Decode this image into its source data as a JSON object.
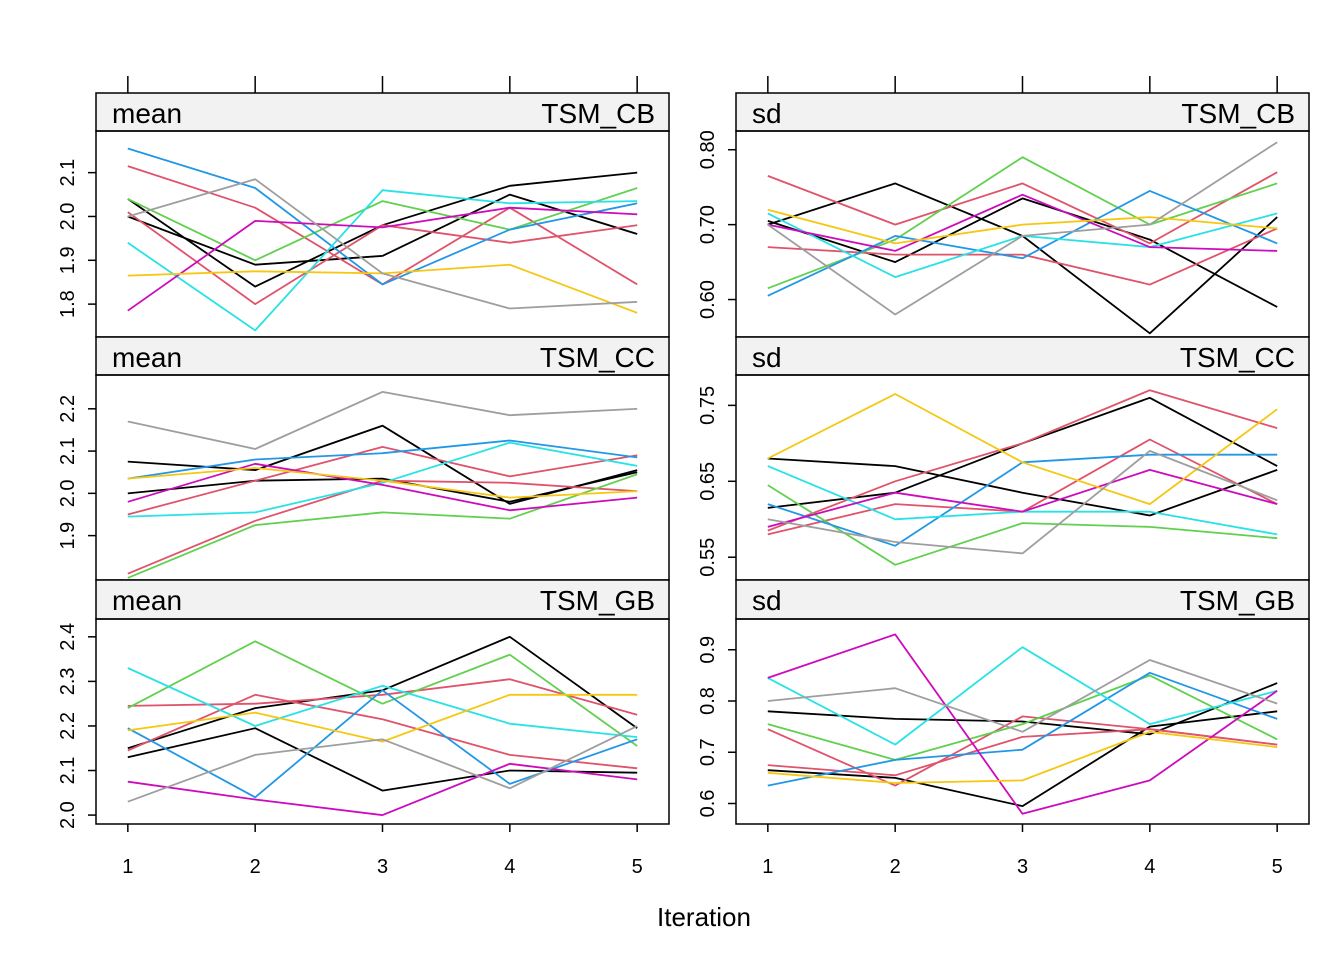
{
  "chart_data": {
    "type": "line",
    "layout": "3 rows x 2 columns lattice (trellis) panels",
    "xlabel": "Iteration",
    "x": [
      1,
      2,
      3,
      4,
      5
    ],
    "colors": [
      "#000000",
      "#DF536B",
      "#61D04F",
      "#2297E6",
      "#28E2E5",
      "#CD0BBC",
      "#F5C710",
      "#9E9E9E"
    ],
    "panels": [
      {
        "stat": "mean",
        "variable": "TSM_CB",
        "ylim": [
          1.725,
          2.195
        ],
        "yticks": [
          1.8,
          1.9,
          2.0,
          2.1
        ],
        "ytick_labels": [
          "1.8",
          "1.9",
          "2.0",
          "2.1"
        ],
        "series": [
          {
            "color": "#000000",
            "values": [
              2.04,
              1.84,
              1.98,
              2.07,
              2.1
            ]
          },
          {
            "color": "#000000",
            "values": [
              2.0,
              1.89,
              1.91,
              2.05,
              1.96
            ]
          },
          {
            "color": "#DF536B",
            "values": [
              2.115,
              2.02,
              1.845,
              2.02,
              1.845
            ]
          },
          {
            "color": "#DF536B",
            "values": [
              2.01,
              1.8,
              1.98,
              1.94,
              1.98
            ]
          },
          {
            "color": "#61D04F",
            "values": [
              2.04,
              1.9,
              2.035,
              1.97,
              2.065
            ]
          },
          {
            "color": "#2297E6",
            "values": [
              2.155,
              2.065,
              1.845,
              1.97,
              2.03
            ]
          },
          {
            "color": "#28E2E5",
            "values": [
              1.94,
              1.74,
              2.06,
              2.03,
              2.035
            ]
          },
          {
            "color": "#CD0BBC",
            "values": [
              1.785,
              1.99,
              1.975,
              2.02,
              2.005
            ]
          },
          {
            "color": "#F5C710",
            "values": [
              1.865,
              1.875,
              1.87,
              1.89,
              1.78
            ]
          },
          {
            "color": "#9E9E9E",
            "values": [
              2.0,
              2.085,
              1.87,
              1.79,
              1.805
            ]
          }
        ]
      },
      {
        "stat": "sd",
        "variable": "TSM_CB",
        "ylim": [
          0.55,
          0.825
        ],
        "yticks": [
          0.6,
          0.7,
          0.8
        ],
        "ytick_labels": [
          "0.60",
          "0.70",
          "0.80"
        ],
        "series": [
          {
            "color": "#000000",
            "values": [
              0.7,
              0.755,
              0.685,
              0.555,
              0.71
            ]
          },
          {
            "color": "#000000",
            "values": [
              0.705,
              0.65,
              0.735,
              0.68,
              0.59
            ]
          },
          {
            "color": "#DF536B",
            "values": [
              0.765,
              0.7,
              0.755,
              0.675,
              0.77
            ]
          },
          {
            "color": "#DF536B",
            "values": [
              0.67,
              0.66,
              0.66,
              0.62,
              0.695
            ]
          },
          {
            "color": "#61D04F",
            "values": [
              0.615,
              0.68,
              0.79,
              0.7,
              0.755
            ]
          },
          {
            "color": "#2297E6",
            "values": [
              0.605,
              0.685,
              0.655,
              0.745,
              0.675
            ]
          },
          {
            "color": "#28E2E5",
            "values": [
              0.715,
              0.63,
              0.685,
              0.67,
              0.715
            ]
          },
          {
            "color": "#CD0BBC",
            "values": [
              0.7,
              0.665,
              0.74,
              0.67,
              0.665
            ]
          },
          {
            "color": "#F5C710",
            "values": [
              0.72,
              0.675,
              0.7,
              0.71,
              0.695
            ]
          },
          {
            "color": "#9E9E9E",
            "values": [
              0.7,
              0.58,
              0.685,
              0.7,
              0.81
            ]
          }
        ]
      },
      {
        "stat": "mean",
        "variable": "TSM_CC",
        "ylim": [
          1.795,
          2.28
        ],
        "yticks": [
          1.9,
          2.0,
          2.1,
          2.2
        ],
        "ytick_labels": [
          "1.9",
          "2.0",
          "2.1",
          "2.2"
        ],
        "series": [
          {
            "color": "#000000",
            "values": [
              2.075,
              2.055,
              2.16,
              1.975,
              2.055
            ]
          },
          {
            "color": "#000000",
            "values": [
              2.0,
              2.03,
              2.035,
              1.98,
              2.05
            ]
          },
          {
            "color": "#DF536B",
            "values": [
              1.95,
              2.03,
              2.11,
              2.04,
              2.09
            ]
          },
          {
            "color": "#DF536B",
            "values": [
              1.81,
              1.935,
              2.03,
              2.025,
              2.005
            ]
          },
          {
            "color": "#61D04F",
            "values": [
              1.8,
              1.925,
              1.955,
              1.94,
              2.045
            ]
          },
          {
            "color": "#2297E6",
            "values": [
              2.035,
              2.08,
              2.095,
              2.125,
              2.085
            ]
          },
          {
            "color": "#28E2E5",
            "values": [
              1.945,
              1.955,
              2.025,
              2.12,
              2.065
            ]
          },
          {
            "color": "#CD0BBC",
            "values": [
              1.98,
              2.07,
              2.02,
              1.96,
              1.99
            ]
          },
          {
            "color": "#F5C710",
            "values": [
              2.035,
              2.06,
              2.03,
              1.99,
              2.005
            ]
          },
          {
            "color": "#9E9E9E",
            "values": [
              2.17,
              2.105,
              2.24,
              2.185,
              2.2
            ]
          }
        ]
      },
      {
        "stat": "sd",
        "variable": "TSM_CC",
        "ylim": [
          0.52,
          0.79
        ],
        "yticks": [
          0.55,
          0.65,
          0.75
        ],
        "ytick_labels": [
          "0.55",
          "0.65",
          "0.75"
        ],
        "series": [
          {
            "color": "#000000",
            "values": [
              0.68,
              0.67,
              0.635,
              0.605,
              0.665
            ]
          },
          {
            "color": "#000000",
            "values": [
              0.615,
              0.635,
              0.7,
              0.76,
              0.67
            ]
          },
          {
            "color": "#DF536B",
            "values": [
              0.585,
              0.65,
              0.7,
              0.77,
              0.72
            ]
          },
          {
            "color": "#DF536B",
            "values": [
              0.58,
              0.62,
              0.61,
              0.705,
              0.62
            ]
          },
          {
            "color": "#61D04F",
            "values": [
              0.645,
              0.54,
              0.595,
              0.59,
              0.575
            ]
          },
          {
            "color": "#2297E6",
            "values": [
              0.62,
              0.565,
              0.675,
              0.685,
              0.685
            ]
          },
          {
            "color": "#28E2E5",
            "values": [
              0.67,
              0.6,
              0.61,
              0.61,
              0.58
            ]
          },
          {
            "color": "#CD0BBC",
            "values": [
              0.59,
              0.635,
              0.61,
              0.665,
              0.62
            ]
          },
          {
            "color": "#F5C710",
            "values": [
              0.68,
              0.765,
              0.675,
              0.62,
              0.745
            ]
          },
          {
            "color": "#9E9E9E",
            "values": [
              0.6,
              0.57,
              0.555,
              0.69,
              0.625
            ]
          }
        ]
      },
      {
        "stat": "mean",
        "variable": "TSM_GB",
        "ylim": [
          1.98,
          2.44
        ],
        "yticks": [
          2.0,
          2.1,
          2.2,
          2.3,
          2.4
        ],
        "ytick_labels": [
          "2.0",
          "2.1",
          "2.2",
          "2.3",
          "2.4"
        ],
        "series": [
          {
            "color": "#000000",
            "values": [
              2.13,
              2.195,
              2.055,
              2.1,
              2.095
            ]
          },
          {
            "color": "#000000",
            "values": [
              2.15,
              2.24,
              2.28,
              2.4,
              2.195
            ]
          },
          {
            "color": "#DF536B",
            "values": [
              2.145,
              2.27,
              2.215,
              2.135,
              2.105
            ]
          },
          {
            "color": "#DF536B",
            "values": [
              2.245,
              2.25,
              2.27,
              2.305,
              2.225
            ]
          },
          {
            "color": "#61D04F",
            "values": [
              2.24,
              2.39,
              2.25,
              2.36,
              2.155
            ]
          },
          {
            "color": "#2297E6",
            "values": [
              2.195,
              2.04,
              2.28,
              2.07,
              2.17
            ]
          },
          {
            "color": "#28E2E5",
            "values": [
              2.33,
              2.2,
              2.29,
              2.205,
              2.175
            ]
          },
          {
            "color": "#CD0BBC",
            "values": [
              2.075,
              2.035,
              2.0,
              2.115,
              2.08
            ]
          },
          {
            "color": "#F5C710",
            "values": [
              2.19,
              2.23,
              2.165,
              2.27,
              2.27
            ]
          },
          {
            "color": "#9E9E9E",
            "values": [
              2.03,
              2.135,
              2.17,
              2.06,
              2.2
            ]
          }
        ]
      },
      {
        "stat": "sd",
        "variable": "TSM_GB",
        "ylim": [
          0.56,
          0.96
        ],
        "yticks": [
          0.6,
          0.7,
          0.8,
          0.9
        ],
        "ytick_labels": [
          "0.6",
          "0.7",
          "0.8",
          "0.9"
        ],
        "series": [
          {
            "color": "#000000",
            "values": [
              0.78,
              0.765,
              0.76,
              0.735,
              0.835
            ]
          },
          {
            "color": "#000000",
            "values": [
              0.665,
              0.65,
              0.595,
              0.75,
              0.78
            ]
          },
          {
            "color": "#DF536B",
            "values": [
              0.745,
              0.635,
              0.77,
              0.745,
              0.715
            ]
          },
          {
            "color": "#DF536B",
            "values": [
              0.675,
              0.655,
              0.73,
              0.745,
              0.715
            ]
          },
          {
            "color": "#61D04F",
            "values": [
              0.755,
              0.685,
              0.755,
              0.85,
              0.725
            ]
          },
          {
            "color": "#2297E6",
            "values": [
              0.635,
              0.685,
              0.705,
              0.855,
              0.765
            ]
          },
          {
            "color": "#28E2E5",
            "values": [
              0.845,
              0.715,
              0.905,
              0.755,
              0.82
            ]
          },
          {
            "color": "#CD0BBC",
            "values": [
              0.845,
              0.93,
              0.58,
              0.645,
              0.82
            ]
          },
          {
            "color": "#F5C710",
            "values": [
              0.66,
              0.64,
              0.645,
              0.74,
              0.71
            ]
          },
          {
            "color": "#9E9E9E",
            "values": [
              0.8,
              0.825,
              0.74,
              0.88,
              0.795
            ]
          }
        ]
      }
    ]
  }
}
